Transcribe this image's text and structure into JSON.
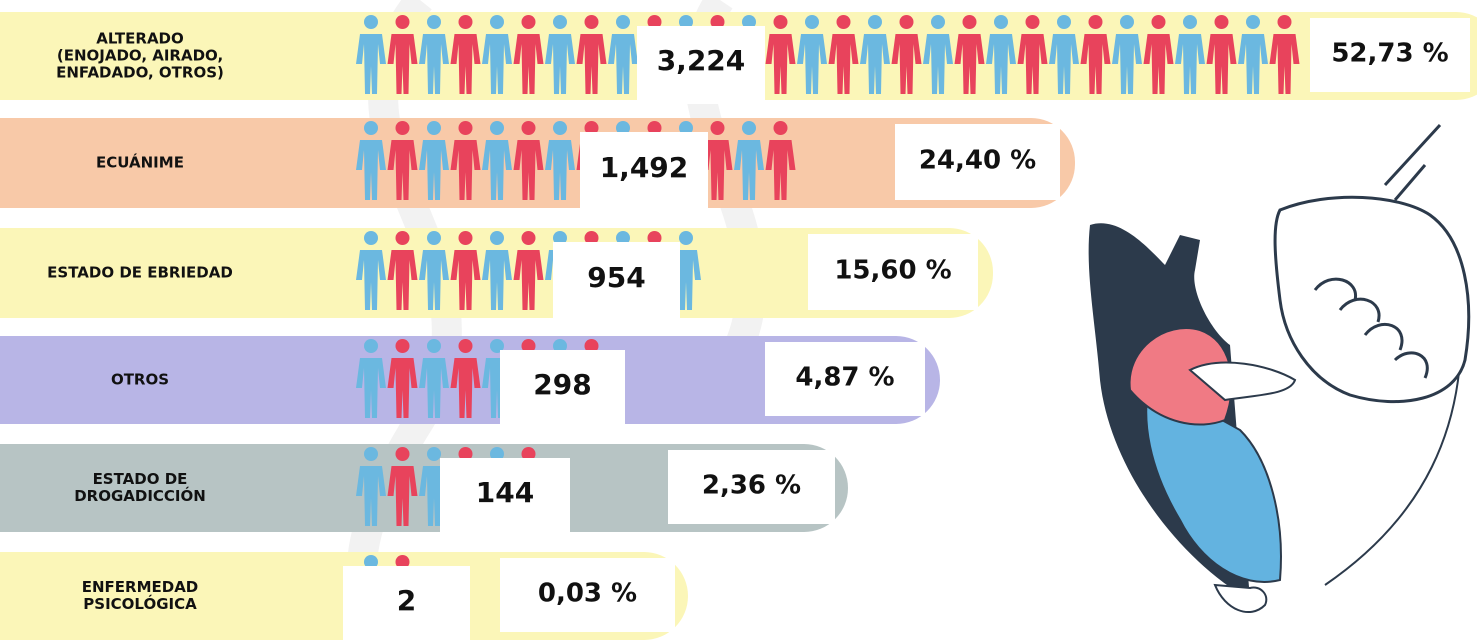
{
  "rows": [
    {
      "label": [
        "ALTERADO",
        "(ENOJADO, AIRADO,",
        "ENFADADO, OTROS)"
      ],
      "count": "3,224",
      "percent": "52,73 %"
    },
    {
      "label": [
        "ECUÁNIME"
      ],
      "count": "1,492",
      "percent": "24,40 %"
    },
    {
      "label": [
        "ESTADO DE EBRIEDAD"
      ],
      "count": "954",
      "percent": "15,60 %"
    },
    {
      "label": [
        "OTROS"
      ],
      "count": "298",
      "percent": "4,87 %"
    },
    {
      "label": [
        "ESTADO DE",
        "DROGADICCIÓN"
      ],
      "count": "144",
      "percent": "2,36 %"
    },
    {
      "label": [
        "ENFERMEDAD",
        "PSICOLÓGICA"
      ],
      "count": "2",
      "percent": "0,03 %"
    }
  ]
}
